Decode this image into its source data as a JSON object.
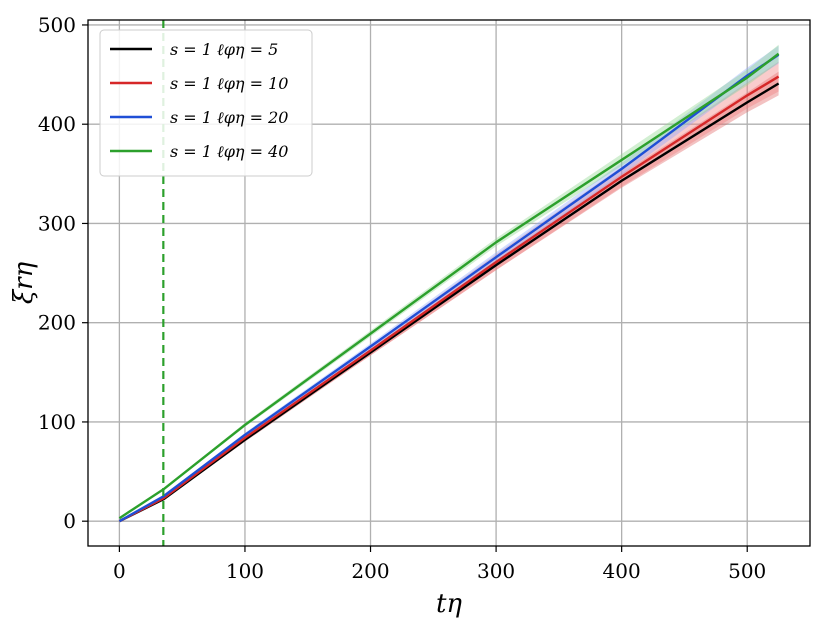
{
  "chart_data": {
    "type": "line",
    "title": "",
    "xlabel": "tη",
    "ylabel": "ξrη",
    "xlim": [
      -25,
      550
    ],
    "ylim": [
      -25,
      505
    ],
    "xticks": [
      0,
      100,
      200,
      300,
      400,
      500
    ],
    "yticks": [
      0,
      100,
      200,
      300,
      400,
      500
    ],
    "xtick_labels": [
      "0",
      "100",
      "200",
      "300",
      "400",
      "500"
    ],
    "ytick_labels": [
      "0",
      "100",
      "200",
      "300",
      "400",
      "500"
    ],
    "grid": true,
    "legend_position": "top-left",
    "vline": {
      "x": 35,
      "color": "#2ca02c",
      "style": "dashed"
    },
    "series": [
      {
        "name": "s = 1  ℓφη = 5",
        "color": "#000000",
        "band_color": "#e06666",
        "x": [
          0,
          35,
          100,
          200,
          300,
          400,
          500,
          525
        ],
        "y": [
          0,
          22,
          82,
          170,
          258,
          343,
          422,
          441
        ],
        "band": [
          0,
          1,
          2,
          3,
          5,
          7,
          10,
          12
        ]
      },
      {
        "name": "s = 1  ℓφη = 10",
        "color": "#d62728",
        "band_color": "#f08080",
        "x": [
          0,
          35,
          100,
          200,
          300,
          400,
          500,
          525
        ],
        "y": [
          0,
          23,
          84,
          172,
          261,
          347,
          429,
          448
        ],
        "band": [
          0,
          1,
          3,
          5,
          8,
          10,
          13,
          15
        ]
      },
      {
        "name": "s = 1  ℓφη = 20",
        "color": "#1f4fd6",
        "band_color": "#8fa8ff",
        "x": [
          0,
          35,
          100,
          200,
          300,
          400,
          500,
          525
        ],
        "y": [
          0,
          25,
          87,
          176,
          266,
          355,
          449,
          470
        ],
        "band": [
          0,
          1,
          2,
          3,
          5,
          6,
          8,
          9
        ]
      },
      {
        "name": "s = 1  ℓφη = 40",
        "color": "#2ca02c",
        "band_color": "#8fd88f",
        "x": [
          0,
          35,
          100,
          200,
          300,
          400,
          500,
          525
        ],
        "y": [
          3,
          32,
          97,
          189,
          281,
          364,
          447,
          471
        ],
        "band": [
          0,
          1,
          2,
          3,
          4,
          6,
          8,
          9
        ]
      }
    ]
  }
}
